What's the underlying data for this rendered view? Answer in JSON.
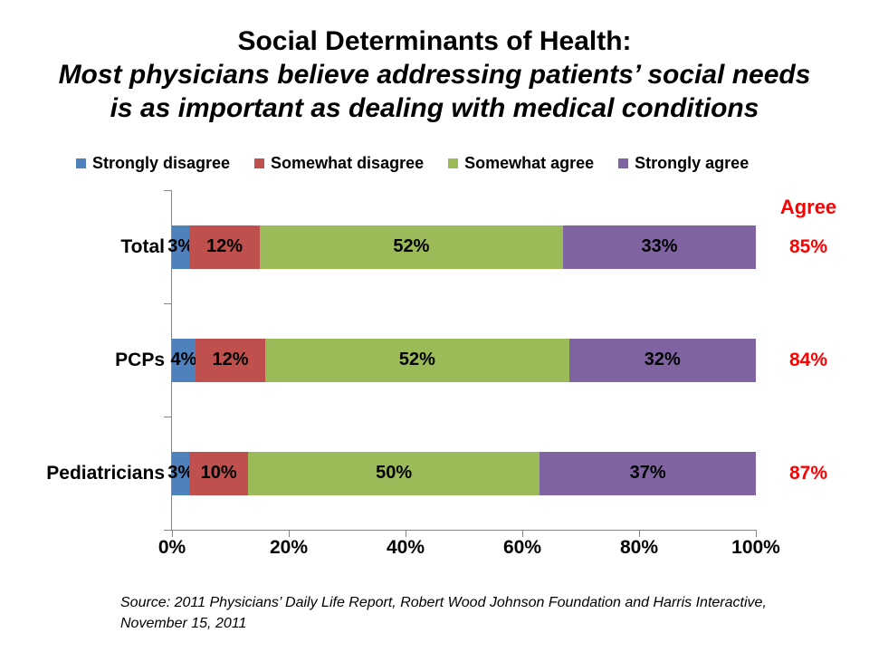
{
  "title": {
    "line1": "Social Determinants of Health:",
    "line2": "Most physicians believe addressing patients’ social needs",
    "line3": "is as important as dealing with medical conditions"
  },
  "legend": [
    {
      "label": "Strongly disagree",
      "color": "#4F81BD"
    },
    {
      "label": "Somewhat disagree",
      "color": "#C0504D"
    },
    {
      "label": "Somewhat agree",
      "color": "#9BBB59"
    },
    {
      "label": "Strongly agree",
      "color": "#8064A2"
    }
  ],
  "agree_header": "Agree",
  "chart_data": {
    "type": "bar",
    "orientation": "horizontal",
    "stacked": true,
    "grid": false,
    "legend_position": "top",
    "categories": [
      "Total",
      "PCPs",
      "Pediatricians"
    ],
    "series": [
      {
        "name": "Strongly disagree",
        "color": "#4F81BD",
        "values": [
          3,
          4,
          3
        ]
      },
      {
        "name": "Somewhat disagree",
        "color": "#C0504D",
        "values": [
          12,
          12,
          10
        ]
      },
      {
        "name": "Somewhat agree",
        "color": "#9BBB59",
        "values": [
          52,
          52,
          50
        ]
      },
      {
        "name": "Strongly agree",
        "color": "#8064A2",
        "values": [
          33,
          32,
          37
        ]
      }
    ],
    "data_labels": [
      [
        "3%",
        "12%",
        "52%",
        "33%"
      ],
      [
        "4%",
        "12%",
        "52%",
        "32%"
      ],
      [
        "3%",
        "10%",
        "50%",
        "37%"
      ]
    ],
    "agree_totals": [
      "85%",
      "84%",
      "87%"
    ],
    "xlim": [
      0,
      100
    ],
    "x_tick_values": [
      0,
      20,
      40,
      60,
      80,
      100
    ],
    "x_tick_labels": [
      "0%",
      "20%",
      "40%",
      "60%",
      "80%",
      "100%"
    ]
  },
  "colors": {
    "agree_text": "#FF0000",
    "axis": "#858585",
    "data_label_text": "#000000"
  },
  "source": {
    "line1": "Source: 2011 Physicians’ Daily Life Report, Robert Wood Johnson Foundation and Harris Interactive,",
    "line2": "November 15, 2011"
  }
}
